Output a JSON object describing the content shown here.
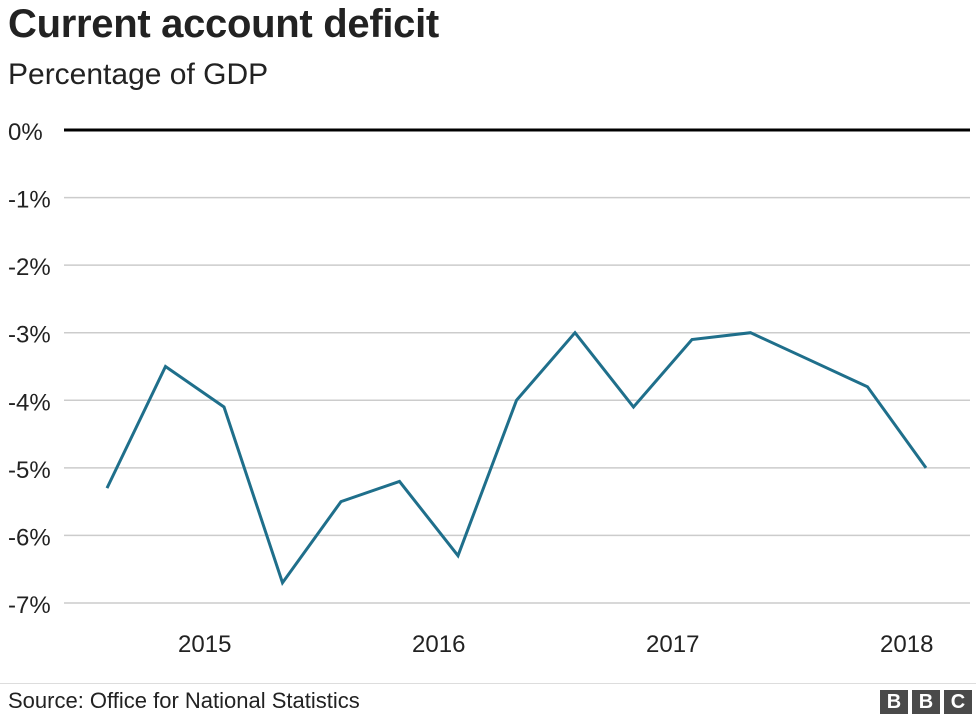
{
  "title": "Current account deficit",
  "subtitle": "Percentage of GDP",
  "source": "Source: Office for National Statistics",
  "logo_text": "BBC",
  "colors": {
    "line": "#1f6f8b",
    "grid": "#cccccc",
    "zero_line": "#000000",
    "text": "#222222"
  },
  "chart_data": {
    "type": "line",
    "title": "Current account deficit",
    "subtitle": "Percentage of GDP",
    "xlabel": "",
    "ylabel": "",
    "ylim": [
      -7,
      0
    ],
    "yticks": [
      0,
      -1,
      -2,
      -3,
      -4,
      -5,
      -6,
      -7
    ],
    "ytick_labels": [
      "0%",
      "-1%",
      "-2%",
      "-3%",
      "-4%",
      "-5%",
      "-6%",
      "-7%"
    ],
    "xtick_labels": [
      "2015",
      "2016",
      "2017",
      "2018"
    ],
    "grid": true,
    "x": [
      "2014 Q3",
      "2014 Q4",
      "2015 Q1",
      "2015 Q2",
      "2015 Q3",
      "2015 Q4",
      "2016 Q1",
      "2016 Q2",
      "2016 Q3",
      "2016 Q4",
      "2017 Q1",
      "2017 Q2",
      "2017 Q3",
      "2017 Q4",
      "2018 Q1"
    ],
    "series": [
      {
        "values": [
          -5.3,
          -3.5,
          -4.1,
          -6.7,
          -5.5,
          -5.2,
          -6.3,
          -4.0,
          -3.0,
          -4.1,
          -3.1,
          -3.0,
          -3.4,
          -3.8,
          -5.0
        ]
      }
    ]
  }
}
